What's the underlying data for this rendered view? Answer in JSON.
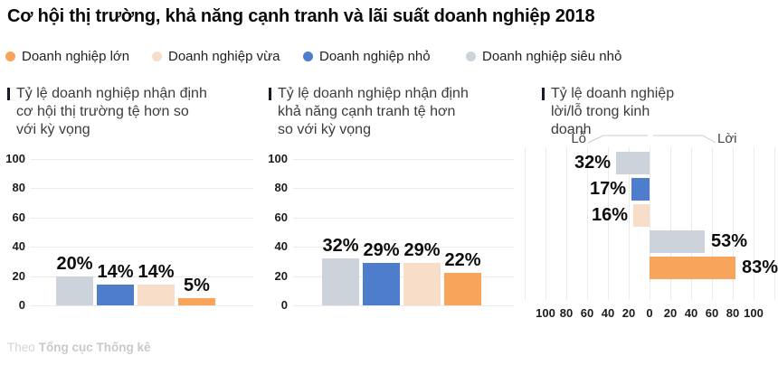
{
  "title": "Cơ hội thị trường, khả năng cạnh tranh và lãi suất doanh nghiệp 2018",
  "legend": [
    {
      "label": "Doanh nghiệp lớn",
      "color": "#F8A55B"
    },
    {
      "label": "Doanh nghiệp vừa",
      "color": "#F8DEC9"
    },
    {
      "label": "Doanh nghiệp nhỏ",
      "color": "#4E7DCC"
    },
    {
      "label": "Doanh nghiệp siêu nhỏ",
      "color": "#CDD3DB"
    }
  ],
  "chart_data": [
    {
      "type": "bar",
      "title": "Tỷ lệ doanh nghiệp nhận định cơ hội thị trường tệ hơn so với kỳ vọng",
      "categories": [
        "Doanh nghiệp siêu nhỏ",
        "Doanh nghiệp nhỏ",
        "Doanh nghiệp vừa",
        "Doanh nghiệp lớn"
      ],
      "values": [
        20,
        14,
        14,
        5
      ],
      "value_labels": [
        "20%",
        "14%",
        "14%",
        "5%"
      ],
      "colors": [
        "#CDD3DB",
        "#4E7DCC",
        "#F8DEC9",
        "#F8A55B"
      ],
      "unit": "%",
      "ylim": [
        0,
        100
      ],
      "yticks": [
        0,
        20,
        40,
        60,
        80,
        100
      ],
      "grid": true,
      "legend_position": "top"
    },
    {
      "type": "bar",
      "title": "Tỷ lệ doanh nghiệp nhận định khả năng cạnh tranh tệ hơn so với kỳ vọng",
      "categories": [
        "Doanh nghiệp siêu nhỏ",
        "Doanh nghiệp nhỏ",
        "Doanh nghiệp vừa",
        "Doanh nghiệp lớn"
      ],
      "values": [
        32,
        29,
        29,
        22
      ],
      "value_labels": [
        "32%",
        "29%",
        "29%",
        "22%"
      ],
      "colors": [
        "#CDD3DB",
        "#4E7DCC",
        "#F8DEC9",
        "#F8A55B"
      ],
      "unit": "%",
      "ylim": [
        0,
        100
      ],
      "yticks": [
        0,
        20,
        40,
        60,
        80,
        100
      ],
      "grid": true,
      "legend_position": "top"
    },
    {
      "type": "diverging-horizontal-bar",
      "title": "Tỷ lệ doanh nghiệp lời/lỗ trong kinh doanh",
      "left_label": "Lỗ",
      "right_label": "Lời",
      "rows": [
        {
          "category": "Doanh nghiệp siêu nhỏ",
          "side": "loss",
          "value": 32,
          "label": "32%",
          "color": "#CDD3DB"
        },
        {
          "category": "Doanh nghiệp nhỏ",
          "side": "loss",
          "value": 17,
          "label": "17%",
          "color": "#4E7DCC"
        },
        {
          "category": "Doanh nghiệp vừa",
          "side": "loss",
          "value": 16,
          "label": "16%",
          "color": "#F8DEC9"
        },
        {
          "category": "Doanh nghiệp siêu nhỏ",
          "side": "profit",
          "value": 53,
          "label": "53%",
          "color": "#CDD3DB"
        },
        {
          "category": "Doanh nghiệp lớn",
          "side": "profit",
          "value": 83,
          "label": "83%",
          "color": "#F8A55B"
        }
      ],
      "unit": "%",
      "xlim": [
        -100,
        100
      ],
      "xticks": [
        -100,
        -80,
        -60,
        -40,
        -20,
        0,
        20,
        40,
        60,
        80,
        100
      ],
      "grid": true
    }
  ],
  "footer": {
    "prefix": "Theo",
    "source": "Tổng cục Thống kê"
  }
}
